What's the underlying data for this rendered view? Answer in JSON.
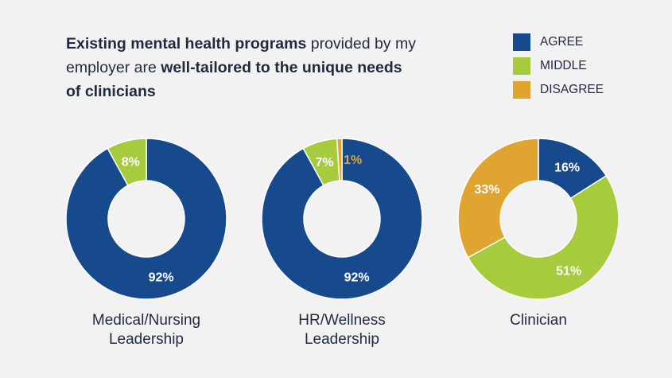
{
  "title": {
    "bold1": "Existing mental health programs",
    "plain1": " provided by my employer are ",
    "bold2": "well-tailored to the unique needs of clinicians"
  },
  "colors": {
    "agree": "#174a8c",
    "middle": "#a6cb3c",
    "disagree": "#e0a431"
  },
  "chart_data": {
    "type": "pie",
    "variant": "donut",
    "title": "Existing mental health programs provided by my employer are well-tailored to the unique needs of clinicians",
    "legend": [
      "AGREE",
      "MIDDLE",
      "DISAGREE"
    ],
    "legend_placement": "top-right",
    "charts": [
      {
        "category_line1": "Medical/Nursing",
        "category_line2": "Leadership",
        "values": {
          "agree": 92,
          "middle": 8,
          "disagree": 0
        },
        "labels": {
          "agree": "92%",
          "middle": "8%"
        }
      },
      {
        "category_line1": "HR/Wellness",
        "category_line2": "Leadership",
        "values": {
          "agree": 92,
          "middle": 7,
          "disagree": 1
        },
        "labels": {
          "agree": "92%",
          "middle": "7%",
          "disagree": "1%"
        }
      },
      {
        "category_line1": "Clinician",
        "category_line2": "",
        "values": {
          "agree": 16,
          "middle": 51,
          "disagree": 33
        },
        "labels": {
          "agree": "16%",
          "middle": "51%",
          "disagree": "33%"
        }
      }
    ]
  }
}
